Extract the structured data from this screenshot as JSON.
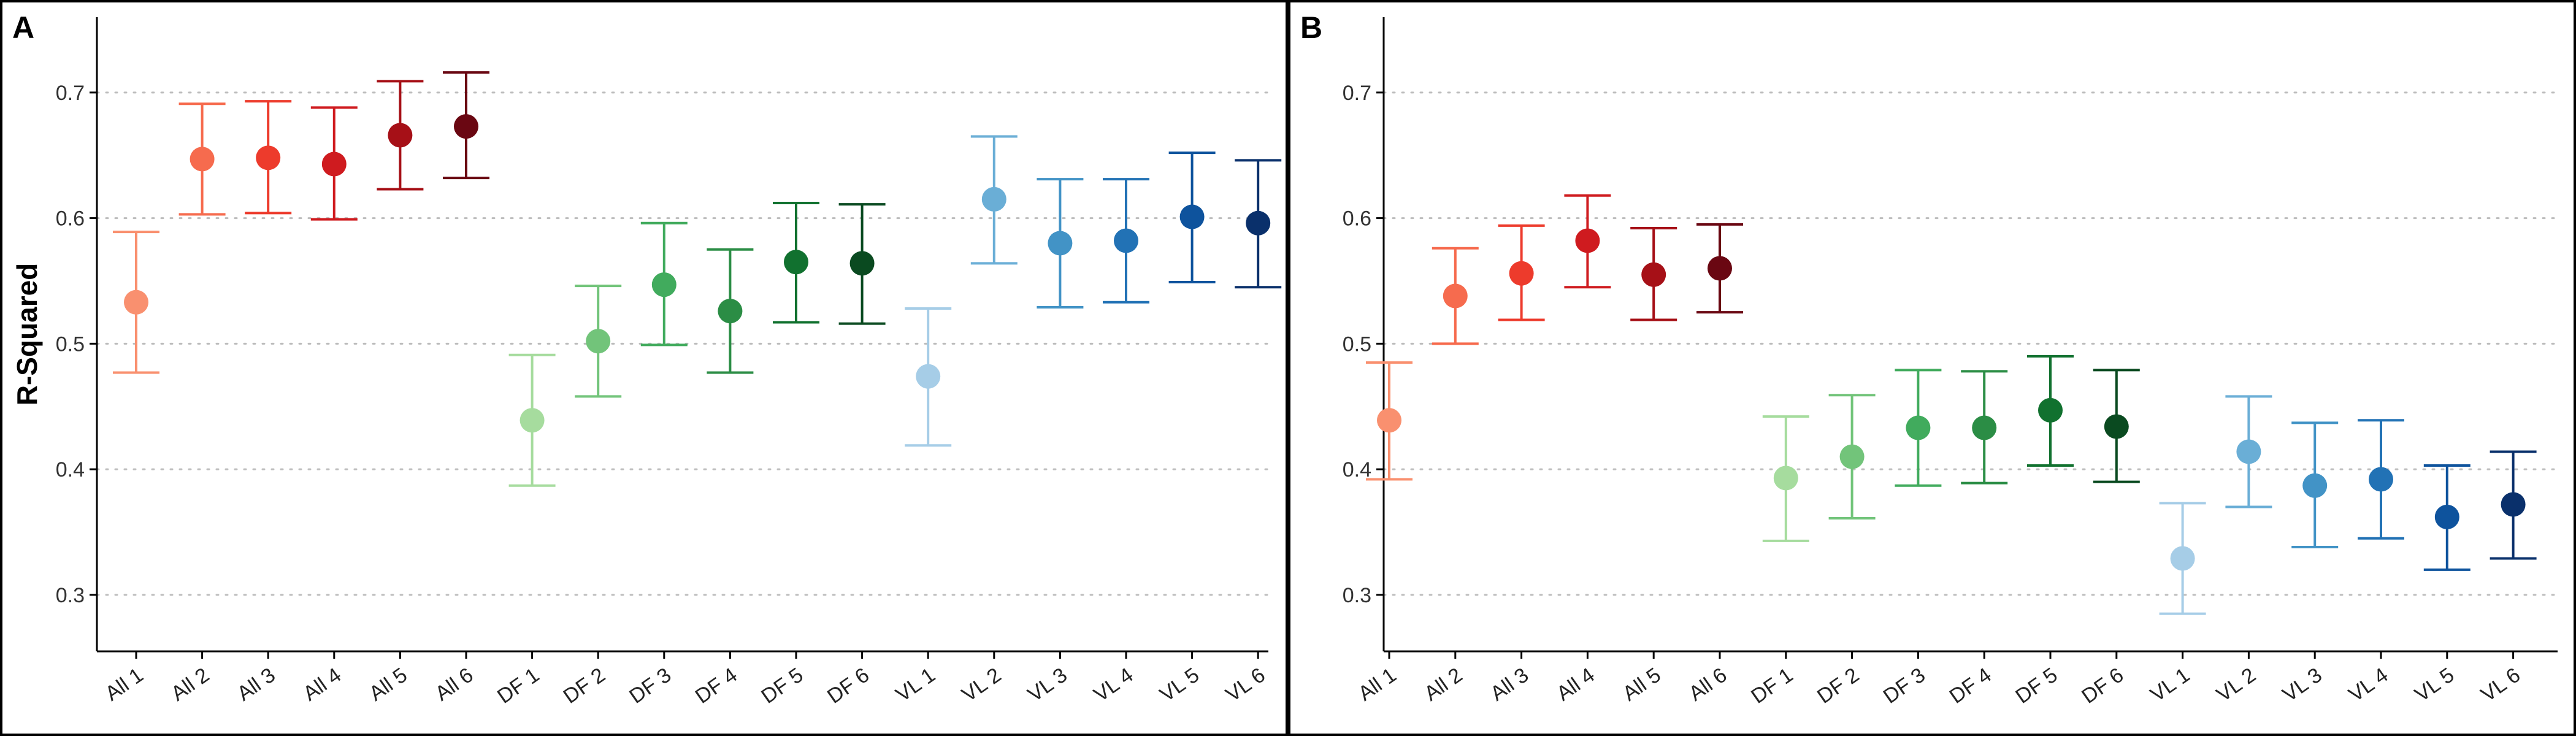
{
  "chart_data": [
    {
      "type": "scatter",
      "panel": "A",
      "ylabel": "R-Squared",
      "xlabel": "",
      "ylim": [
        0.255,
        0.76
      ],
      "yticks": [
        0.3,
        0.4,
        0.5,
        0.6,
        0.7
      ],
      "ytick_labels": [
        "0.3",
        "0.4",
        "0.5",
        "0.6",
        "0.7"
      ],
      "grid": "horizontal-dotted",
      "categories": [
        "All 1",
        "All 2",
        "All 3",
        "All 4",
        "All 5",
        "All 6",
        "DF 1",
        "DF 2",
        "DF 3",
        "DF 4",
        "DF 5",
        "DF 6",
        "VL 1",
        "VL 2",
        "VL 3",
        "VL 4",
        "VL 5",
        "VL 6"
      ],
      "values": [
        0.533,
        0.647,
        0.648,
        0.643,
        0.666,
        0.673,
        0.439,
        0.502,
        0.547,
        0.526,
        0.565,
        0.564,
        0.474,
        0.615,
        0.58,
        0.582,
        0.601,
        0.596
      ],
      "lower": [
        0.477,
        0.603,
        0.604,
        0.599,
        0.623,
        0.632,
        0.387,
        0.458,
        0.499,
        0.477,
        0.517,
        0.516,
        0.419,
        0.564,
        0.529,
        0.533,
        0.549,
        0.545
      ],
      "upper": [
        0.589,
        0.691,
        0.693,
        0.688,
        0.709,
        0.716,
        0.491,
        0.546,
        0.596,
        0.575,
        0.612,
        0.611,
        0.528,
        0.665,
        0.631,
        0.631,
        0.652,
        0.646
      ]
    },
    {
      "type": "scatter",
      "panel": "B",
      "ylabel": "",
      "xlabel": "",
      "ylim": [
        0.255,
        0.76
      ],
      "yticks": [
        0.3,
        0.4,
        0.5,
        0.6,
        0.7
      ],
      "ytick_labels": [
        "0.3",
        "0.4",
        "0.5",
        "0.6",
        "0.7"
      ],
      "grid": "horizontal-dotted",
      "categories": [
        "All 1",
        "All 2",
        "All 3",
        "All 4",
        "All 5",
        "All 6",
        "DF 1",
        "DF 2",
        "DF 3",
        "DF 4",
        "DF 5",
        "DF 6",
        "VL 1",
        "VL 2",
        "VL 3",
        "VL 4",
        "VL 5",
        "VL 6"
      ],
      "values": [
        0.439,
        0.538,
        0.556,
        0.582,
        0.555,
        0.56,
        0.393,
        0.41,
        0.433,
        0.433,
        0.447,
        0.434,
        0.329,
        0.414,
        0.387,
        0.392,
        0.362,
        0.372
      ],
      "lower": [
        0.392,
        0.5,
        0.519,
        0.545,
        0.519,
        0.525,
        0.343,
        0.361,
        0.387,
        0.389,
        0.403,
        0.39,
        0.285,
        0.37,
        0.338,
        0.345,
        0.32,
        0.329
      ],
      "upper": [
        0.485,
        0.576,
        0.594,
        0.618,
        0.592,
        0.595,
        0.442,
        0.459,
        0.479,
        0.478,
        0.49,
        0.479,
        0.373,
        0.458,
        0.437,
        0.439,
        0.403,
        0.414
      ]
    }
  ],
  "colors": [
    "#f9906f",
    "#f66b4e",
    "#ed3b2c",
    "#cf1b1f",
    "#a61017",
    "#6a0712",
    "#a6dc9e",
    "#72c47a",
    "#41ab5d",
    "#2b8d45",
    "#11712f",
    "#0a4a20",
    "#a6cde7",
    "#6aaed6",
    "#4293c6",
    "#2272b5",
    "#0e539d",
    "#0a306b"
  ]
}
